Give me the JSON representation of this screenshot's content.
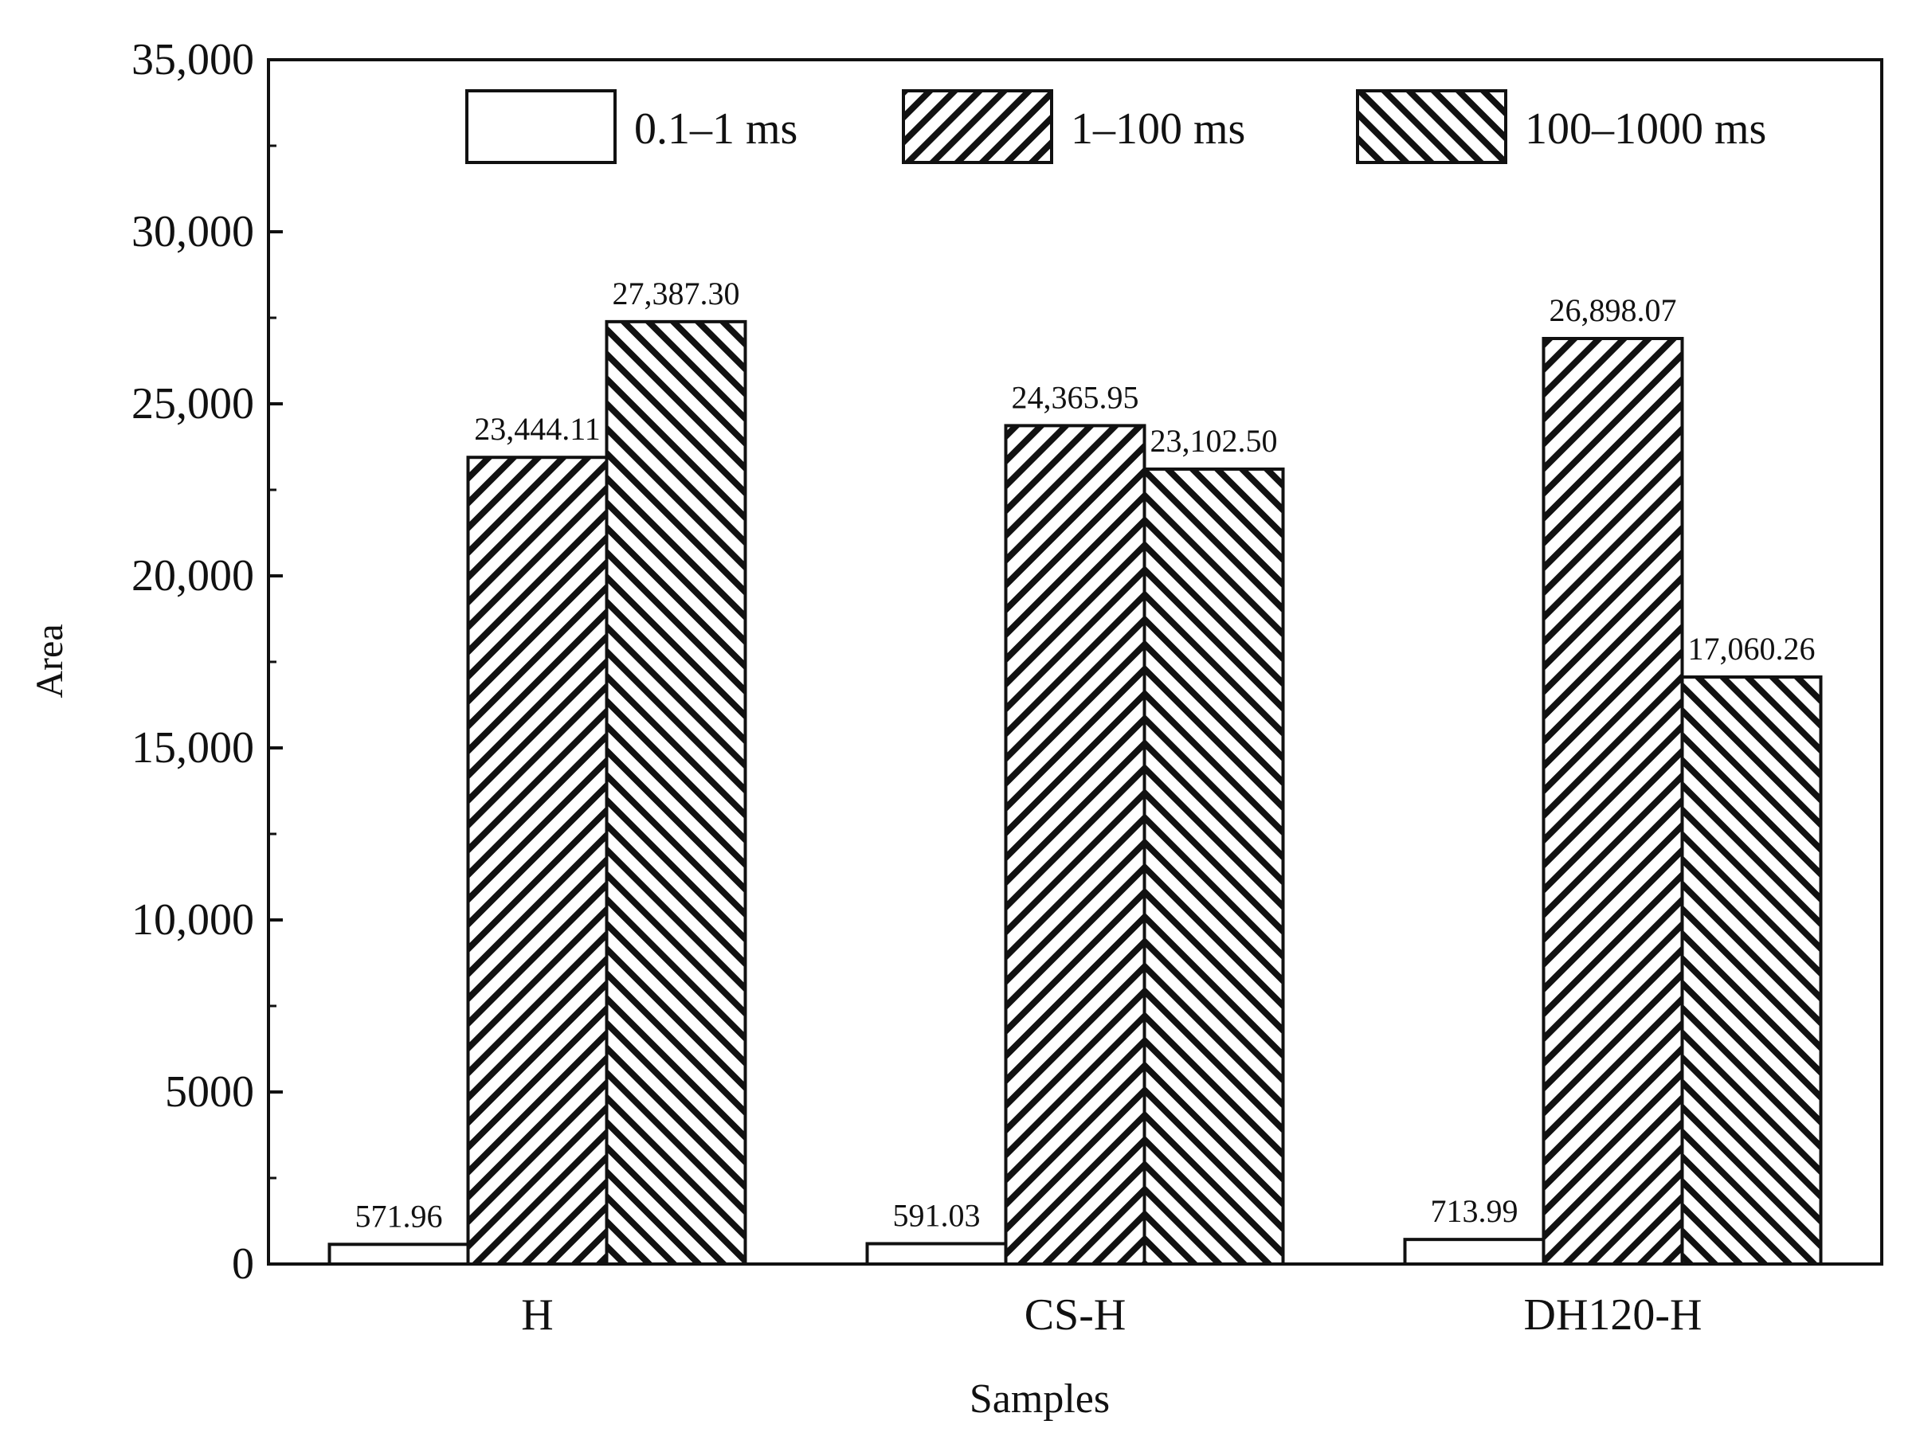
{
  "chart_data": {
    "type": "bar",
    "title": "",
    "xlabel": "Samples",
    "ylabel": "Area",
    "categories": [
      "H",
      "CS-H",
      "DH120-H"
    ],
    "ylim": [
      0,
      35000
    ],
    "yticks": [
      0,
      5000,
      10000,
      15000,
      20000,
      25000,
      30000,
      35000
    ],
    "ytick_labels": [
      "0",
      "5000",
      "10,000",
      "15,000",
      "20,000",
      "25,000",
      "30,000",
      "35,000"
    ],
    "grid": false,
    "legend_position": "top",
    "series": [
      {
        "name": "0.1–1 ms",
        "fill": "plain",
        "values": [
          571.96,
          591.03,
          713.99
        ],
        "labels": [
          "571.96",
          "591.03",
          "713.99"
        ]
      },
      {
        "name": "1–100 ms",
        "fill": "forward-diagonal-hatch",
        "values": [
          23444.11,
          24365.95,
          26898.07
        ],
        "labels": [
          "23,444.11",
          "24,365.95",
          "26,898.07"
        ]
      },
      {
        "name": "100–1000 ms",
        "fill": "backward-diagonal-hatch",
        "values": [
          27387.3,
          23102.5,
          17060.26
        ],
        "labels": [
          "27,387.30",
          "23,102.50",
          "17,060.26"
        ]
      }
    ],
    "colors": {
      "ink": "#111111",
      "background": "#ffffff"
    }
  }
}
